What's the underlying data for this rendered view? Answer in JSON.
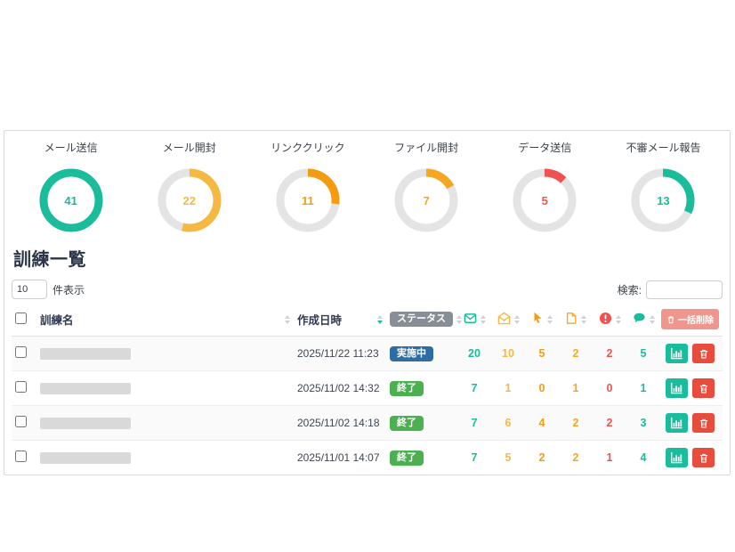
{
  "summary": {
    "track_color": "#e4e4e4",
    "items": [
      {
        "label": "メール送信",
        "value": "41",
        "percent": 100,
        "color": "#1abc9c"
      },
      {
        "label": "メール開封",
        "value": "22",
        "percent": 54,
        "color": "#f5b942"
      },
      {
        "label": "リンククリック",
        "value": "11",
        "percent": 27,
        "color": "#f39c12"
      },
      {
        "label": "ファイル開封",
        "value": "7",
        "percent": 17,
        "color": "#f5a623"
      },
      {
        "label": "データ送信",
        "value": "5",
        "percent": 12,
        "color": "#ef5350"
      },
      {
        "label": "不審メール報告",
        "value": "13",
        "percent": 32,
        "color": "#1abc9c"
      }
    ]
  },
  "list": {
    "title": "訓練一覧",
    "page_length": {
      "value": "10",
      "label": "件表示"
    },
    "search": {
      "label": "検索:",
      "value": ""
    },
    "bulk_delete_label": "一括削除",
    "columns": {
      "name": "訓練名",
      "created": "作成日時",
      "status": "ステータス",
      "metric_icons": [
        {
          "name": "mail-sent-icon",
          "color": "#1abc9c"
        },
        {
          "name": "mail-opened-icon",
          "color": "#f5b942"
        },
        {
          "name": "link-clicked-icon",
          "color": "#f39c12"
        },
        {
          "name": "file-opened-icon",
          "color": "#f5a623"
        },
        {
          "name": "data-sent-icon",
          "color": "#ef5350"
        },
        {
          "name": "reported-icon",
          "color": "#1abc9c"
        }
      ]
    },
    "count_colors": [
      "#1abc9c",
      "#f5b942",
      "#f39c12",
      "#f5a623",
      "#ef5350",
      "#1abc9c"
    ],
    "status_colors": {
      "実施中": "#2e6da4",
      "終了": "#4caf50"
    },
    "rows": [
      {
        "created": "2025/11/22 11:23",
        "status": "実施中",
        "counts": [
          "20",
          "10",
          "5",
          "2",
          "2",
          "5"
        ]
      },
      {
        "created": "2025/11/02 14:32",
        "status": "終了",
        "counts": [
          "7",
          "1",
          "0",
          "1",
          "0",
          "1"
        ]
      },
      {
        "created": "2025/11/02 14:18",
        "status": "終了",
        "counts": [
          "7",
          "6",
          "4",
          "2",
          "2",
          "3"
        ]
      },
      {
        "created": "2025/11/01 14:07",
        "status": "終了",
        "counts": [
          "7",
          "5",
          "2",
          "2",
          "1",
          "4"
        ]
      }
    ]
  }
}
